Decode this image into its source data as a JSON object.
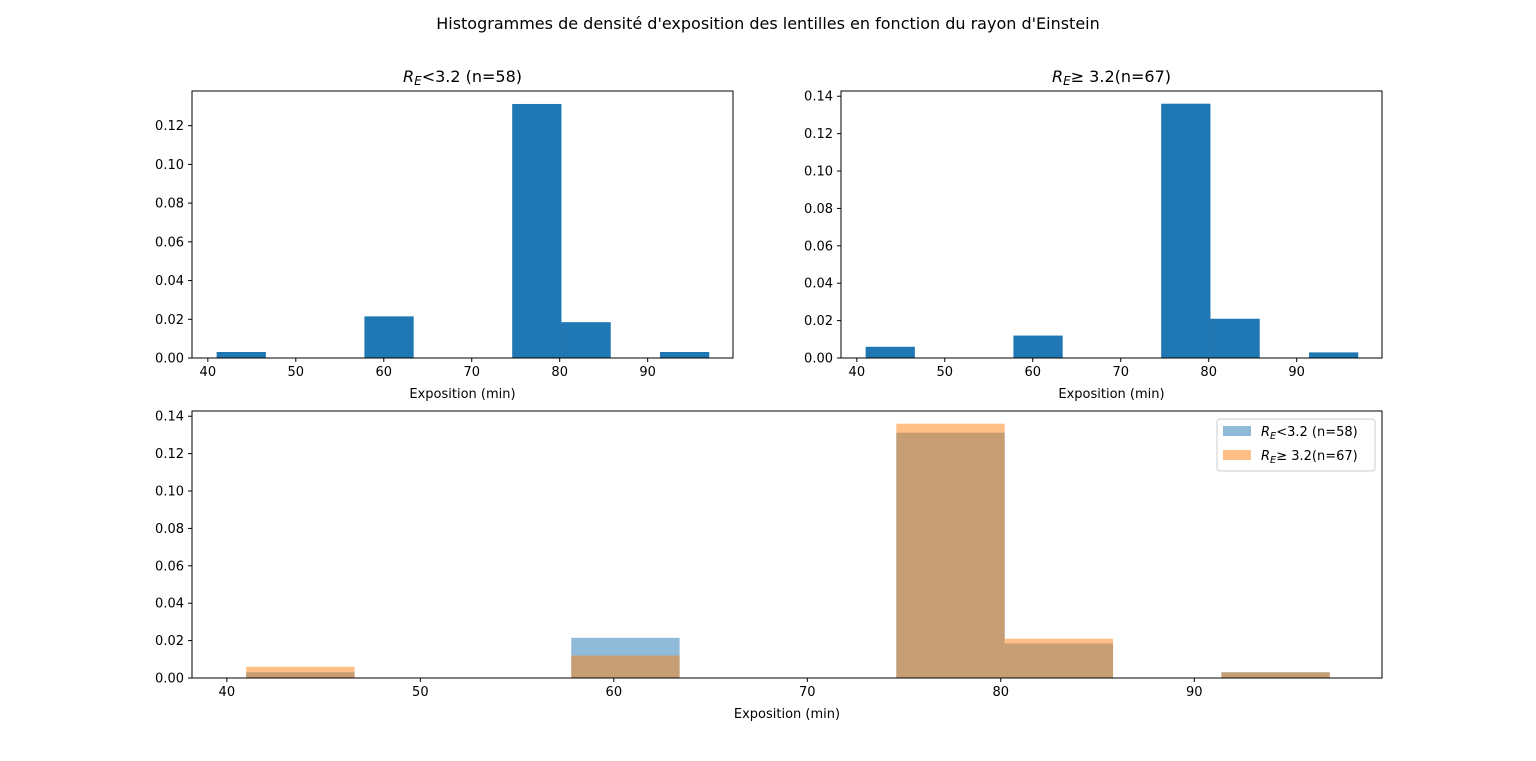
{
  "figure": {
    "suptitle": "Histogrammes de densité d'exposition des lentilles en fonction du rayon d'Einstein"
  },
  "chart_data": [
    {
      "type": "bar",
      "title": "R_E<3.2 (n=58)",
      "title_parts": {
        "sym": "R",
        "sub": "E",
        "rest": "<3.2 (n=58)"
      },
      "xlabel": "Exposition (min)",
      "ylabel": "",
      "xlim": [
        38.2,
        99.7
      ],
      "ylim": [
        0,
        0.1379
      ],
      "xticks": [
        40,
        50,
        60,
        70,
        80,
        90
      ],
      "yticks": [
        0.0,
        0.02,
        0.04,
        0.06,
        0.08,
        0.1,
        0.12
      ],
      "bin_edges": [
        41.0,
        46.6,
        52.2,
        57.8,
        63.4,
        69.0,
        74.6,
        80.2,
        85.8,
        91.4,
        97.0
      ],
      "series": [
        {
          "values": [
            0.0031,
            0,
            0,
            0.0215,
            0,
            0,
            0.1312,
            0.0185,
            0,
            0.0031
          ],
          "color": "#1f77b4"
        }
      ]
    },
    {
      "type": "bar",
      "title": "R_E≥ 3.2(n=67)",
      "title_parts": {
        "sym": "R",
        "sub": "E",
        "rest": "≥  3.2(n=67)"
      },
      "xlabel": "Exposition (min)",
      "ylabel": "",
      "xlim": [
        38.2,
        99.7
      ],
      "ylim": [
        0,
        0.1428
      ],
      "xticks": [
        40,
        50,
        60,
        70,
        80,
        90
      ],
      "yticks": [
        0.0,
        0.02,
        0.04,
        0.06,
        0.08,
        0.1,
        0.12,
        0.14
      ],
      "bin_edges": [
        41.0,
        46.6,
        52.2,
        57.8,
        63.4,
        69.0,
        74.6,
        80.2,
        85.8,
        91.4,
        97.0
      ],
      "series": [
        {
          "values": [
            0.006,
            0,
            0,
            0.012,
            0,
            0,
            0.136,
            0.021,
            0,
            0.003
          ],
          "color": "#1f77b4"
        }
      ]
    },
    {
      "type": "bar",
      "title": "",
      "xlabel": "Exposition (min)",
      "ylabel": "",
      "xlim": [
        38.2,
        99.7
      ],
      "ylim": [
        0,
        0.1428
      ],
      "xticks": [
        40,
        50,
        60,
        70,
        80,
        90
      ],
      "yticks": [
        0.0,
        0.02,
        0.04,
        0.06,
        0.08,
        0.1,
        0.12,
        0.14
      ],
      "bin_edges": [
        41.0,
        46.6,
        52.2,
        57.8,
        63.4,
        69.0,
        74.6,
        80.2,
        85.8,
        91.4,
        97.0
      ],
      "legend_position": "top-right",
      "series": [
        {
          "name": "R_E<3.2 (n=58)",
          "name_parts": {
            "sym": "R",
            "sub": "E",
            "rest": "<3.2 (n=58)"
          },
          "values": [
            0.0031,
            0,
            0,
            0.0215,
            0,
            0,
            0.1312,
            0.0185,
            0,
            0.0031
          ],
          "color": "#1f77b4",
          "opacity": 0.5
        },
        {
          "name": "R_E≥ 3.2(n=67)",
          "name_parts": {
            "sym": "R",
            "sub": "E",
            "rest": "≥  3.2(n=67)"
          },
          "values": [
            0.006,
            0,
            0,
            0.012,
            0,
            0,
            0.136,
            0.021,
            0,
            0.003
          ],
          "color": "#ff7f0e",
          "opacity": 0.5
        }
      ]
    }
  ]
}
